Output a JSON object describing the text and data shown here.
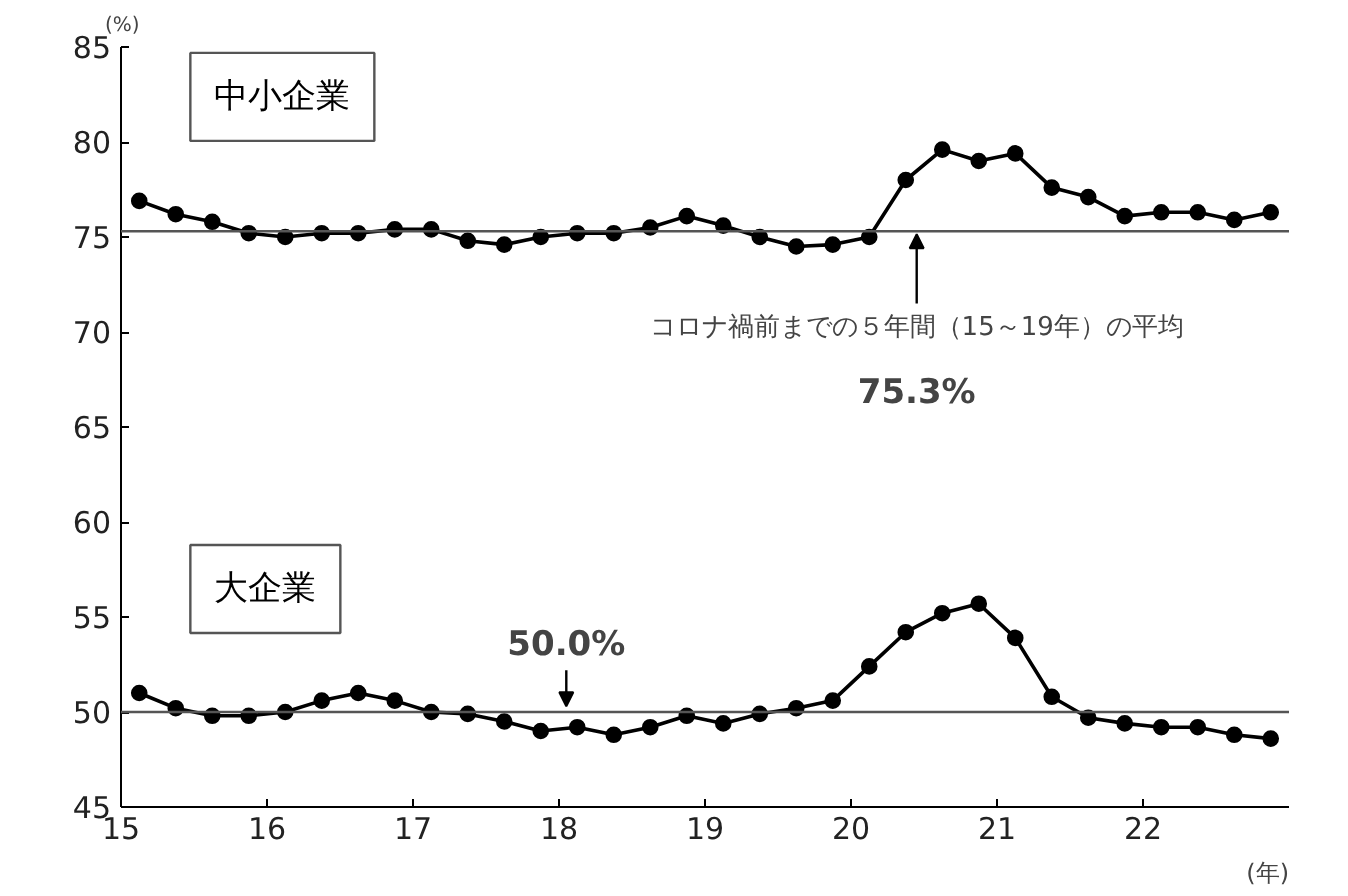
{
  "chart_data": {
    "type": "line",
    "ylabel": "(%)",
    "xlabel": "(年)",
    "xlim": [
      15,
      23
    ],
    "xticks": [
      15,
      16,
      17,
      18,
      19,
      20,
      21,
      22
    ],
    "ylim": [
      45,
      85
    ],
    "yticks": [
      45,
      50,
      55,
      60,
      65,
      70,
      75,
      80,
      85
    ],
    "grid": false,
    "legend": false,
    "marker": "circle",
    "x": [
      15.125,
      15.375,
      15.625,
      15.875,
      16.125,
      16.375,
      16.625,
      16.875,
      17.125,
      17.375,
      17.625,
      17.875,
      18.125,
      18.375,
      18.625,
      18.875,
      19.125,
      19.375,
      19.625,
      19.875,
      20.125,
      20.375,
      20.625,
      20.875,
      21.125,
      21.375,
      21.625,
      21.875,
      22.125,
      22.375,
      22.625,
      22.875
    ],
    "series": [
      {
        "name": "中小企業",
        "color": "#000000",
        "values": [
          76.9,
          76.2,
          75.8,
          75.2,
          75.0,
          75.2,
          75.2,
          75.4,
          75.4,
          74.8,
          74.6,
          75.0,
          75.2,
          75.2,
          75.5,
          76.1,
          75.6,
          75.0,
          74.5,
          74.6,
          75.0,
          78.0,
          79.6,
          79.0,
          79.4,
          77.6,
          77.1,
          76.1,
          76.3,
          76.3,
          75.9,
          76.3
        ]
      },
      {
        "name": "大企業",
        "color": "#000000",
        "values": [
          51.0,
          50.2,
          49.8,
          49.8,
          50.0,
          50.6,
          51.0,
          50.6,
          50.0,
          49.9,
          49.5,
          49.0,
          49.2,
          48.8,
          49.2,
          49.8,
          49.4,
          49.9,
          50.2,
          50.6,
          52.4,
          54.2,
          55.2,
          55.7,
          53.9,
          50.8,
          49.7,
          49.4,
          49.2,
          49.2,
          48.8,
          48.6
        ]
      }
    ],
    "ref_lines": [
      {
        "axis": "y",
        "value": 75.3,
        "color": "#555555"
      },
      {
        "axis": "y",
        "value": 50.0,
        "color": "#555555"
      }
    ],
    "annotations": [
      {
        "text": "コロナ禍前までの５年間（15～19年）の平均\n75.3%",
        "x": 20.45,
        "y": 75.3
      },
      {
        "text": "50.0%",
        "x": 18.05,
        "y": 50.0
      }
    ]
  }
}
